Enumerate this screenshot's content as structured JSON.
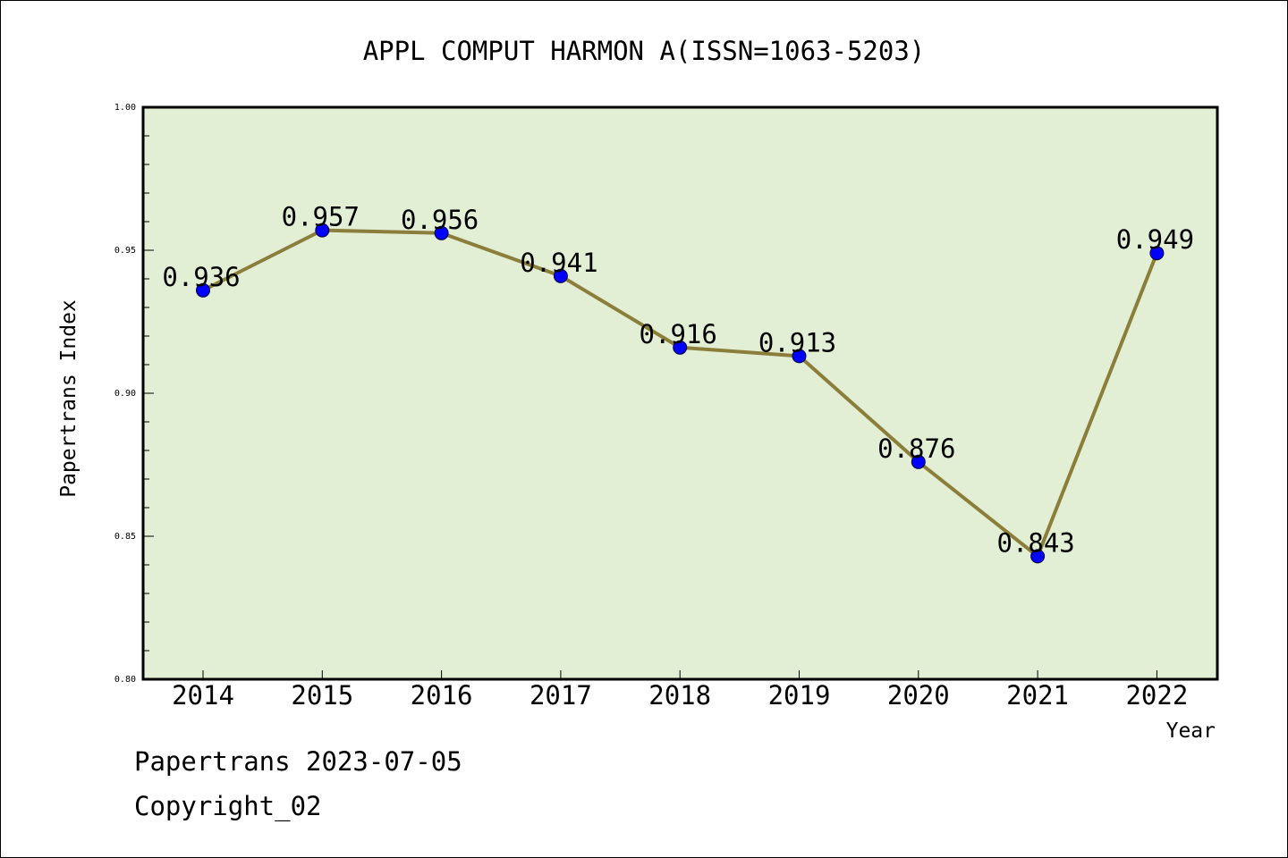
{
  "chart_data": {
    "type": "line",
    "title": "APPL COMPUT HARMON A(ISSN=1063-5203)",
    "xlabel": "Year",
    "ylabel": "Papertrans Index",
    "categories": [
      "2014",
      "2015",
      "2016",
      "2017",
      "2018",
      "2019",
      "2020",
      "2021",
      "2022"
    ],
    "values": [
      0.936,
      0.957,
      0.956,
      0.941,
      0.916,
      0.913,
      0.876,
      0.843,
      0.949
    ],
    "data_labels": [
      "0.936",
      "0.957",
      "0.956",
      "0.941",
      "0.916",
      "0.913",
      "0.876",
      "0.843",
      "0.949"
    ],
    "ylim": [
      0.8,
      1.0
    ],
    "yticks": [
      "0.80",
      "0.85",
      "0.90",
      "0.95",
      "1.00"
    ],
    "grid": false,
    "legend": "none"
  },
  "footer": {
    "source": "Papertrans 2023-07-05",
    "copyright": "Copyright_02"
  },
  "colors": {
    "plot_background": "#e2efd4",
    "line": "#8b7d3a",
    "marker": "#0000ff",
    "axis": "#000000"
  }
}
